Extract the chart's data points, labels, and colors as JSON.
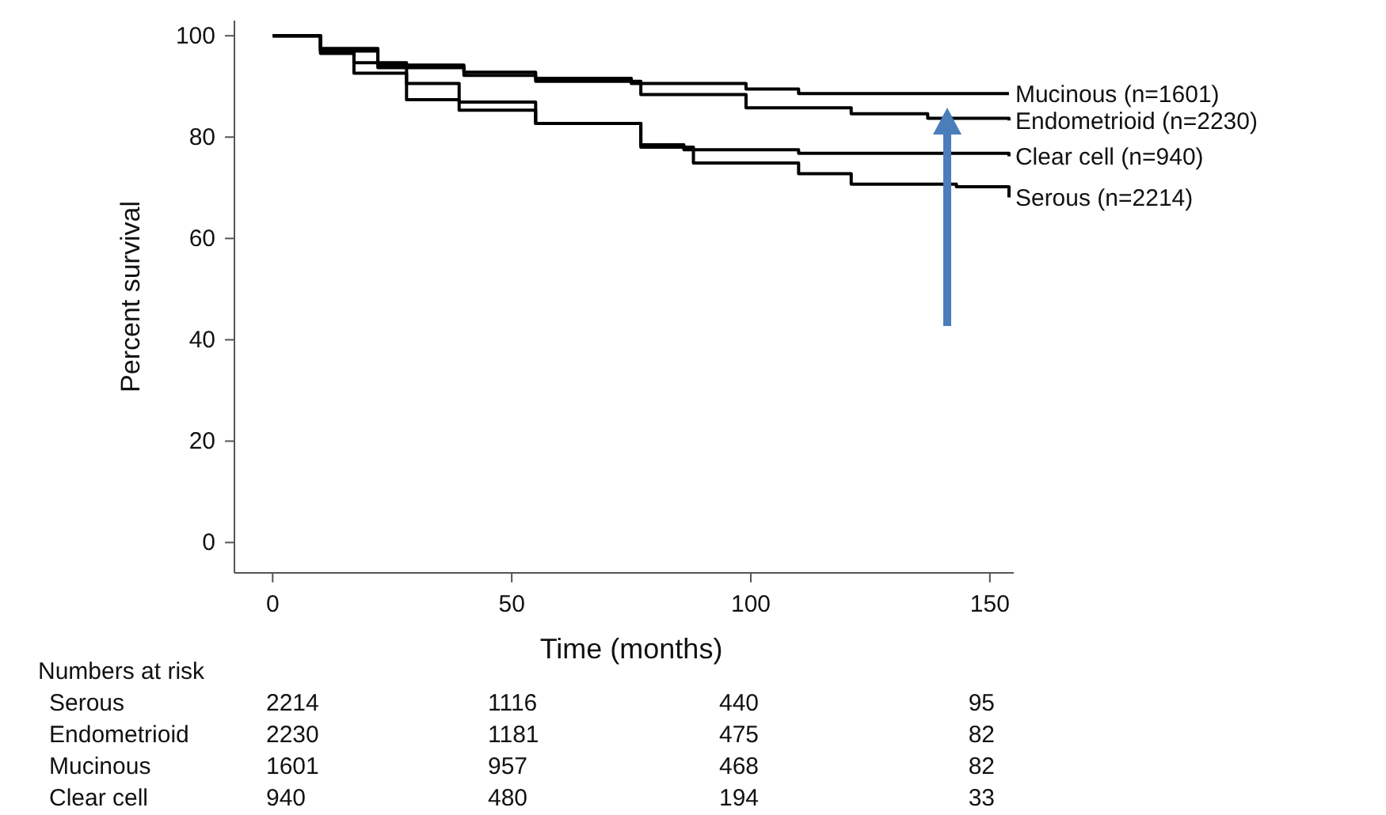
{
  "chart_data": {
    "type": "step",
    "xlabel": "Time (months)",
    "ylabel": "Percent survival",
    "xlim": [
      -8,
      155
    ],
    "ylim": [
      -6,
      103
    ],
    "xticks": [
      0,
      50,
      100,
      150
    ],
    "yticks": [
      0,
      20,
      40,
      60,
      80,
      100
    ],
    "series": [
      {
        "name": "Mucinous (n=1601)",
        "color": "#000000",
        "x": [
          0,
          10,
          22,
          40,
          55,
          75,
          99,
          110,
          154
        ],
        "values": [
          100,
          97.5,
          94.2,
          92.8,
          91.6,
          90.6,
          89.5,
          88.6,
          88.6
        ]
      },
      {
        "name": "Endometrioid (n=2230)",
        "color": "#000000",
        "x": [
          0,
          10,
          22,
          40,
          55,
          77,
          99,
          121,
          137,
          154
        ],
        "values": [
          100,
          97,
          93.7,
          92.2,
          91,
          88.4,
          85.8,
          84.6,
          83.7,
          83.3
        ]
      },
      {
        "name": "Clear cell (n=940)",
        "color": "#000000",
        "x": [
          0,
          10,
          17,
          28,
          39,
          55,
          77,
          86,
          110,
          154
        ],
        "values": [
          100,
          96.5,
          92.6,
          87.4,
          85.3,
          82.7,
          78.5,
          77.5,
          76.8,
          76.2
        ]
      },
      {
        "name": "Serous (n=2214)",
        "color": "#000000",
        "x": [
          0,
          10,
          17,
          28,
          39,
          55,
          77,
          88,
          110,
          121,
          143,
          154
        ],
        "values": [
          100,
          97,
          94.7,
          90.6,
          86.9,
          82.7,
          78,
          74.9,
          72.8,
          70.7,
          70.2,
          68.1
        ]
      }
    ],
    "annotations": [
      "Numbers at risk",
      "Serous",
      "2214",
      "1116",
      "440",
      "95",
      "Endometrioid",
      "2230",
      "1181",
      "475",
      "82",
      "Mucinous",
      "1601",
      "957",
      "468",
      "82",
      "Clear cell",
      "940",
      "480",
      "194",
      "33"
    ]
  }
}
